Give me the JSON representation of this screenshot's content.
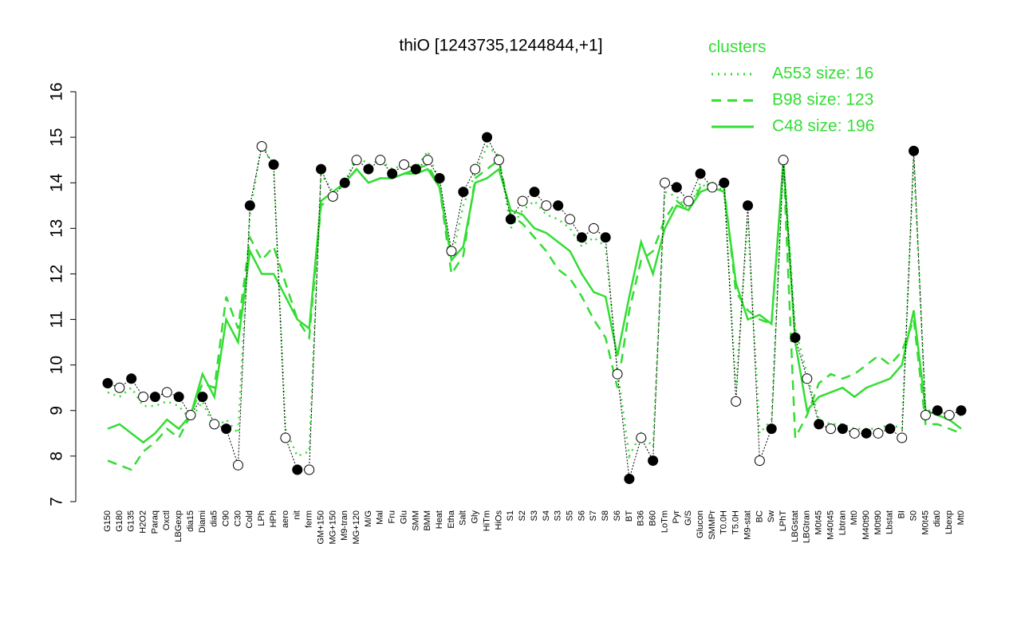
{
  "chart_data": {
    "type": "line",
    "title": "thiO [1243735,1244844,+1]",
    "legend_title": "clusters",
    "legend_position": "top-right",
    "categories": [
      "G150",
      "G180",
      "G135",
      "H2O2",
      "Paraq",
      "Oxctl",
      "LBGexp",
      "dia15",
      "Diami",
      "dia5",
      "C90",
      "C30",
      "Cold",
      "LPh",
      "HPh",
      "aero",
      "nit",
      "ferm",
      "GM+150",
      "MG+150",
      "M9-tran",
      "MG+120",
      "M/G",
      "Mal",
      "Fru",
      "Glu",
      "SMM",
      "BMM",
      "Heat",
      "Etha",
      "Salt",
      "Gly",
      "HiTm",
      "HiOs",
      "S1",
      "S2",
      "S3",
      "S4",
      "S3",
      "S5",
      "S6",
      "S7",
      "S8",
      "S6",
      "BT",
      "B36",
      "B60",
      "LoTm",
      "Pyr",
      "G/S",
      "Glucon",
      "SMMPr",
      "T0.0H",
      "T5.0H",
      "M9-stat",
      "BC",
      "Sw",
      "LPhT",
      "LBGstat",
      "LBGtran",
      "M0t45",
      "M40t45",
      "Lbtran",
      "Mt0",
      "M40t90",
      "M0t90",
      "Lbstat",
      "BI",
      "S0",
      "M0t45",
      "dia0",
      "Lbexp",
      "Mt0"
    ],
    "points": {
      "color": "#000000",
      "values": [
        9.6,
        9.5,
        9.7,
        9.3,
        9.3,
        9.4,
        9.3,
        8.9,
        9.3,
        8.7,
        8.6,
        7.8,
        13.5,
        14.8,
        14.4,
        8.4,
        7.7,
        7.7,
        14.3,
        13.7,
        14.0,
        14.5,
        14.3,
        14.5,
        14.2,
        14.4,
        14.3,
        14.5,
        14.1,
        12.5,
        13.8,
        14.3,
        15.0,
        14.5,
        13.2,
        13.6,
        13.8,
        13.5,
        13.5,
        13.2,
        12.8,
        13.0,
        12.8,
        9.8,
        7.5,
        8.4,
        7.9,
        14.0,
        13.9,
        13.6,
        14.2,
        13.9,
        14.0,
        9.2,
        13.5,
        7.9,
        8.6,
        14.5,
        10.6,
        9.7,
        8.7,
        8.6,
        8.6,
        8.5,
        8.5,
        8.5,
        8.6,
        8.4,
        14.7,
        8.9,
        9.0,
        8.9,
        9.0
      ]
    },
    "series": [
      {
        "name": "A553 size: 16",
        "color": "#33dd33",
        "style": "dotted",
        "values": [
          9.4,
          9.3,
          9.5,
          9.1,
          9.1,
          9.2,
          9.1,
          8.8,
          9.2,
          8.6,
          8.8,
          8.5,
          13.3,
          14.9,
          14.3,
          8.6,
          8.0,
          8.1,
          14.2,
          13.8,
          14.0,
          14.6,
          14.4,
          14.5,
          14.3,
          14.4,
          14.3,
          14.7,
          14.0,
          12.3,
          13.5,
          14.2,
          14.8,
          14.6,
          13.0,
          13.4,
          13.6,
          13.3,
          13.2,
          13.0,
          12.6,
          12.8,
          12.6,
          9.9,
          8.0,
          8.5,
          8.2,
          13.8,
          13.7,
          13.4,
          14.0,
          13.8,
          13.9,
          9.5,
          13.2,
          8.5,
          8.8,
          14.6,
          10.8,
          9.8,
          8.8,
          8.7,
          8.7,
          8.6,
          8.6,
          8.6,
          8.7,
          8.6,
          14.5,
          9.0,
          9.0,
          8.9,
          8.9
        ]
      },
      {
        "name": "B98 size: 123",
        "color": "#33dd33",
        "style": "dashed",
        "values": [
          7.9,
          7.8,
          7.7,
          8.1,
          8.3,
          8.6,
          8.4,
          8.9,
          9.6,
          9.5,
          11.5,
          10.8,
          12.8,
          12.3,
          12.6,
          11.8,
          11.0,
          10.6,
          13.5,
          13.7,
          14.0,
          14.3,
          14.0,
          14.1,
          14.1,
          14.2,
          14.3,
          14.4,
          13.9,
          12.0,
          12.4,
          14.1,
          14.3,
          14.5,
          13.3,
          13.1,
          12.8,
          12.5,
          12.1,
          11.9,
          11.5,
          11.0,
          10.6,
          9.5,
          11.2,
          12.3,
          12.5,
          13.2,
          13.6,
          13.4,
          13.9,
          14.0,
          13.9,
          11.6,
          11.2,
          11.0,
          10.9,
          14.5,
          8.4,
          8.9,
          9.6,
          9.8,
          9.7,
          9.8,
          10.0,
          10.2,
          10.0,
          10.3,
          11.0,
          8.7,
          8.7,
          8.6,
          8.5
        ]
      },
      {
        "name": "C48 size: 196",
        "color": "#33dd33",
        "style": "solid",
        "values": [
          8.6,
          8.7,
          8.5,
          8.3,
          8.5,
          8.8,
          8.6,
          8.9,
          9.8,
          9.3,
          11.0,
          10.5,
          12.5,
          12.0,
          12.0,
          11.5,
          11.0,
          10.8,
          13.6,
          13.8,
          14.0,
          14.3,
          14.0,
          14.1,
          14.1,
          14.2,
          14.2,
          14.3,
          13.9,
          12.3,
          12.6,
          14.0,
          14.1,
          14.3,
          13.4,
          13.3,
          13.0,
          12.9,
          12.7,
          12.5,
          12.0,
          11.6,
          11.5,
          10.2,
          11.5,
          12.7,
          12.0,
          13.0,
          13.5,
          13.4,
          13.8,
          13.9,
          13.8,
          11.8,
          11.0,
          11.1,
          10.9,
          14.5,
          10.5,
          9.0,
          9.3,
          9.4,
          9.5,
          9.3,
          9.5,
          9.6,
          9.7,
          10.0,
          11.2,
          9.0,
          8.9,
          8.8,
          8.6
        ]
      }
    ],
    "ylim": [
      7,
      16
    ],
    "yticks": [
      7,
      8,
      9,
      10,
      11,
      12,
      13,
      14,
      15,
      16
    ]
  }
}
